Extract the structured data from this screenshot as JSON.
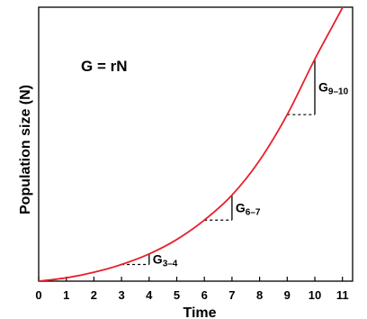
{
  "chart_data": {
    "type": "line",
    "xlabel": "Time",
    "ylabel": "Population size (N)",
    "xlim": [
      0,
      12
    ],
    "ylim": [
      0,
      1
    ],
    "x_ticks": [
      "0",
      "1",
      "2",
      "3",
      "4",
      "5",
      "6",
      "7",
      "8",
      "9",
      "10",
      "11"
    ],
    "equation": "G = rN",
    "curve_color": "#e8202a",
    "grid": false,
    "series": [
      {
        "values_description": "exponential growth",
        "x": [
          0,
          1,
          2,
          3,
          4,
          5,
          6,
          7,
          8,
          9,
          10,
          11,
          11.2
        ],
        "y": [
          0.0,
          0.012,
          0.032,
          0.06,
          0.098,
          0.15,
          0.22,
          0.31,
          0.435,
          0.6,
          0.8,
          0.985,
          1.03
        ]
      }
    ],
    "annotations": [
      {
        "main": "G",
        "sub": "3–4",
        "x_start": 3,
        "x_end": 4,
        "y_start": 0.06,
        "y_end": 0.098
      },
      {
        "main": "G",
        "sub": "6–7",
        "x_start": 6,
        "x_end": 7,
        "y_start": 0.22,
        "y_end": 0.31
      },
      {
        "main": "G",
        "sub": "9–10",
        "x_start": 9,
        "x_end": 10,
        "y_start": 0.6,
        "y_end": 0.8
      }
    ]
  }
}
